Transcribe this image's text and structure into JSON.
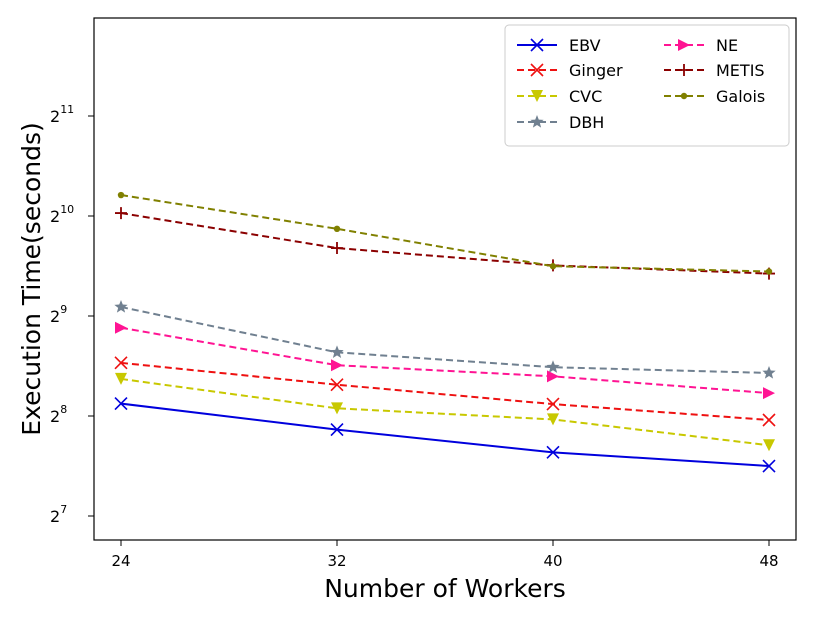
{
  "chart_data": {
    "type": "line",
    "title": "",
    "xlabel": "Number of Workers",
    "ylabel": "Execution Time(seconds)",
    "x": [
      24,
      32,
      40,
      48
    ],
    "xticks": [
      "24",
      "32",
      "40",
      "48"
    ],
    "xlim": [
      23.0,
      49.0
    ],
    "yscale": "log2",
    "ylim_exponent": [
      6.76,
      11.98
    ],
    "yticks": [
      {
        "base": "2",
        "exp": "7",
        "exponent": 7
      },
      {
        "base": "2",
        "exp": "8",
        "exponent": 8
      },
      {
        "base": "2",
        "exp": "9",
        "exponent": 9
      },
      {
        "base": "2",
        "exp": "10",
        "exponent": 10
      },
      {
        "base": "2",
        "exp": "11",
        "exponent": 11
      }
    ],
    "grid": false,
    "legend_position": "top-right",
    "series": [
      {
        "name": "EBV",
        "color": "#0000dd",
        "dash": "solid",
        "marker": "x",
        "values": [
          279,
          233,
          199,
          181
        ]
      },
      {
        "name": "Ginger",
        "color": "#ee1111",
        "dash": "dashed",
        "marker": "x",
        "values": [
          370,
          318,
          278,
          249
        ]
      },
      {
        "name": "CVC",
        "color": "#c8c800",
        "dash": "dashed",
        "marker": "triangle-down",
        "values": [
          331,
          270,
          250,
          209
        ]
      },
      {
        "name": "DBH",
        "color": "#708090",
        "dash": "dashed",
        "marker": "star",
        "values": [
          545,
          398,
          359,
          345
        ]
      },
      {
        "name": "NE",
        "color": "#ff1493",
        "dash": "dashed",
        "marker": "triangle-right",
        "values": [
          472,
          364,
          337,
          300
        ]
      },
      {
        "name": "METIS",
        "color": "#8b0000",
        "dash": "dashed",
        "marker": "plus",
        "values": [
          1045,
          820,
          727,
          687
        ]
      },
      {
        "name": "Galois",
        "color": "#808000",
        "dash": "dashed",
        "marker": "dot",
        "values": [
          1184,
          937,
          723,
          697
        ]
      }
    ]
  }
}
